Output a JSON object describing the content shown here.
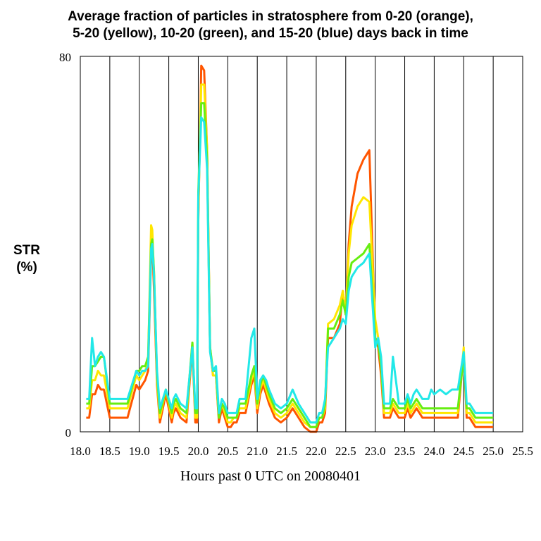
{
  "chart_data": {
    "type": "line",
    "title": [
      "Average fraction of particles in stratosphere from 0-20 (orange),",
      "5-20 (yellow), 10-20 (green), and 15-20 (blue) days back in time"
    ],
    "ylabel": [
      "STR",
      "(%)"
    ],
    "xlabel": "Hours past 0 UTC on 20080401",
    "xlim": [
      18.0,
      25.5
    ],
    "ylim": [
      0,
      80
    ],
    "ytick_labels": [
      "0",
      "80"
    ],
    "xtick_labels": [
      "18.0",
      "18.5",
      "19.0",
      "19.5",
      "20.0",
      "20.5",
      "21.0",
      "21.5",
      "22.0",
      "22.5",
      "23.0",
      "23.5",
      "24.0",
      "24.5",
      "25.0",
      "25.5"
    ],
    "grid": "vertical",
    "legend": "none",
    "series": [
      {
        "color": "#ff5500",
        "x": [
          18.1,
          18.15,
          18.2,
          18.25,
          18.3,
          18.35,
          18.4,
          18.5,
          18.7,
          18.8,
          18.95,
          19.0,
          19.05,
          19.1,
          19.15,
          19.2,
          19.22,
          19.25,
          19.3,
          19.35,
          19.45,
          19.55,
          19.58,
          19.62,
          19.7,
          19.8,
          19.9,
          19.95,
          19.98,
          20.0,
          20.05,
          20.1,
          20.15,
          20.2,
          20.25,
          20.3,
          20.35,
          20.4,
          20.45,
          20.5,
          20.55,
          20.6,
          20.65,
          20.7,
          20.8,
          20.9,
          20.95,
          21.0,
          21.05,
          21.1,
          21.15,
          21.2,
          21.3,
          21.4,
          21.5,
          21.6,
          21.7,
          21.8,
          21.9,
          22.0,
          22.05,
          22.1,
          22.15,
          22.2,
          22.3,
          22.4,
          22.45,
          22.5,
          22.55,
          22.6,
          22.7,
          22.8,
          22.9,
          23.0,
          23.05,
          23.1,
          23.15,
          23.2,
          23.25,
          23.3,
          23.4,
          23.5,
          23.55,
          23.6,
          23.65,
          23.7,
          23.8,
          23.9,
          23.95,
          24.0,
          24.1,
          24.2,
          24.3,
          24.4,
          24.5,
          24.55,
          24.6,
          24.65,
          24.7,
          24.75,
          24.8,
          24.9,
          25.0
        ],
        "y": [
          3,
          3,
          8,
          8,
          10,
          9,
          9,
          3,
          3,
          3,
          10,
          9,
          10,
          11,
          13,
          38,
          40,
          30,
          10,
          2,
          8,
          2,
          4,
          5,
          3,
          2,
          18,
          2,
          2,
          45,
          78,
          77,
          60,
          18,
          12,
          12,
          2,
          5,
          3,
          1,
          1,
          2,
          2,
          4,
          4,
          10,
          12,
          4,
          8,
          10,
          8,
          6,
          3,
          2,
          3,
          5,
          3,
          1,
          0,
          0,
          2,
          2,
          4,
          20,
          20,
          23,
          30,
          25,
          40,
          48,
          55,
          58,
          60,
          20,
          18,
          12,
          3,
          3,
          3,
          5,
          3,
          3,
          5,
          3,
          4,
          5,
          3,
          3,
          3,
          3,
          3,
          3,
          3,
          3,
          17,
          3,
          3,
          2,
          1,
          1,
          1,
          1,
          1
        ]
      },
      {
        "color": "#ffe600",
        "x": [
          18.1,
          18.15,
          18.2,
          18.25,
          18.3,
          18.35,
          18.4,
          18.5,
          18.7,
          18.8,
          18.95,
          19.0,
          19.05,
          19.1,
          19.15,
          19.2,
          19.22,
          19.25,
          19.3,
          19.35,
          19.45,
          19.55,
          19.58,
          19.62,
          19.7,
          19.8,
          19.9,
          19.95,
          19.98,
          20.0,
          20.05,
          20.1,
          20.15,
          20.2,
          20.25,
          20.3,
          20.35,
          20.4,
          20.45,
          20.5,
          20.55,
          20.6,
          20.65,
          20.7,
          20.8,
          20.9,
          20.95,
          21.0,
          21.05,
          21.1,
          21.15,
          21.2,
          21.3,
          21.4,
          21.5,
          21.6,
          21.7,
          21.8,
          21.9,
          22.0,
          22.05,
          22.1,
          22.15,
          22.2,
          22.3,
          22.4,
          22.45,
          22.5,
          22.55,
          22.6,
          22.7,
          22.8,
          22.9,
          23.0,
          23.05,
          23.1,
          23.15,
          23.2,
          23.25,
          23.3,
          23.4,
          23.5,
          23.55,
          23.6,
          23.65,
          23.7,
          23.8,
          23.9,
          23.95,
          24.0,
          24.1,
          24.2,
          24.3,
          24.4,
          24.5,
          24.55,
          24.6,
          24.65,
          24.7,
          24.75,
          24.8,
          24.9,
          25.0
        ],
        "y": [
          5,
          5,
          11,
          11,
          13,
          12,
          12,
          5,
          5,
          5,
          12,
          11,
          12,
          13,
          15,
          44,
          43,
          33,
          11,
          3,
          9,
          3,
          5,
          6,
          4,
          3,
          19,
          3,
          3,
          47,
          74,
          74,
          60,
          18,
          12,
          12,
          3,
          6,
          4,
          2,
          2,
          3,
          3,
          5,
          5,
          11,
          13,
          5,
          9,
          11,
          9,
          7,
          4,
          3,
          4,
          6,
          4,
          2,
          1,
          1,
          3,
          3,
          5,
          23,
          24,
          27,
          30,
          25,
          38,
          44,
          48,
          50,
          49,
          24,
          20,
          14,
          4,
          4,
          4,
          6,
          4,
          4,
          6,
          4,
          5,
          6,
          4,
          4,
          4,
          4,
          4,
          4,
          4,
          4,
          18,
          4,
          4,
          3,
          2,
          2,
          2,
          2,
          2
        ]
      },
      {
        "color": "#66ee11",
        "x": [
          18.1,
          18.15,
          18.2,
          18.25,
          18.3,
          18.35,
          18.4,
          18.5,
          18.7,
          18.8,
          18.95,
          19.0,
          19.05,
          19.1,
          19.15,
          19.2,
          19.22,
          19.25,
          19.3,
          19.35,
          19.45,
          19.55,
          19.58,
          19.62,
          19.7,
          19.8,
          19.9,
          19.95,
          19.98,
          20.0,
          20.05,
          20.1,
          20.15,
          20.2,
          20.25,
          20.3,
          20.35,
          20.4,
          20.45,
          20.5,
          20.55,
          20.6,
          20.65,
          20.7,
          20.8,
          20.9,
          20.95,
          21.0,
          21.05,
          21.1,
          21.15,
          21.2,
          21.3,
          21.4,
          21.5,
          21.6,
          21.7,
          21.8,
          21.9,
          22.0,
          22.05,
          22.1,
          22.15,
          22.2,
          22.3,
          22.4,
          22.45,
          22.5,
          22.55,
          22.6,
          22.7,
          22.8,
          22.9,
          23.0,
          23.05,
          23.1,
          23.15,
          23.2,
          23.25,
          23.3,
          23.4,
          23.5,
          23.55,
          23.6,
          23.65,
          23.7,
          23.8,
          23.9,
          23.95,
          24.0,
          24.1,
          24.2,
          24.3,
          24.4,
          24.5,
          24.55,
          24.6,
          24.65,
          24.7,
          24.75,
          24.8,
          24.9,
          25.0
        ],
        "y": [
          6,
          6,
          14,
          14,
          15,
          16,
          16,
          6,
          6,
          6,
          13,
          13,
          14,
          14,
          16,
          40,
          41,
          34,
          12,
          4,
          9,
          4,
          6,
          7,
          5,
          4,
          19,
          4,
          4,
          51,
          70,
          70,
          58,
          18,
          13,
          13,
          3,
          6,
          5,
          3,
          3,
          3,
          3,
          6,
          6,
          12,
          14,
          6,
          10,
          12,
          10,
          8,
          5,
          4,
          5,
          7,
          5,
          3,
          1,
          1,
          3,
          3,
          6,
          22,
          22,
          25,
          28,
          25,
          33,
          36,
          37,
          38,
          40,
          20,
          19,
          14,
          5,
          5,
          5,
          7,
          5,
          5,
          7,
          5,
          6,
          7,
          5,
          5,
          5,
          5,
          5,
          5,
          5,
          5,
          16,
          5,
          5,
          4,
          3,
          3,
          3,
          3,
          3
        ]
      },
      {
        "color": "#22e8e8",
        "x": [
          18.1,
          18.15,
          18.2,
          18.25,
          18.3,
          18.35,
          18.4,
          18.5,
          18.7,
          18.8,
          18.95,
          19.0,
          19.05,
          19.1,
          19.15,
          19.2,
          19.22,
          19.25,
          19.3,
          19.35,
          19.45,
          19.55,
          19.58,
          19.62,
          19.7,
          19.8,
          19.9,
          19.95,
          19.98,
          20.0,
          20.05,
          20.1,
          20.15,
          20.2,
          20.25,
          20.3,
          20.35,
          20.4,
          20.45,
          20.5,
          20.55,
          20.6,
          20.65,
          20.7,
          20.8,
          20.9,
          20.95,
          21.0,
          21.05,
          21.1,
          21.15,
          21.2,
          21.3,
          21.4,
          21.5,
          21.6,
          21.7,
          21.8,
          21.9,
          22.0,
          22.05,
          22.1,
          22.15,
          22.2,
          22.3,
          22.4,
          22.45,
          22.5,
          22.55,
          22.6,
          22.7,
          22.8,
          22.9,
          23.0,
          23.05,
          23.1,
          23.15,
          23.2,
          23.25,
          23.3,
          23.4,
          23.5,
          23.55,
          23.6,
          23.65,
          23.7,
          23.8,
          23.9,
          23.95,
          24.0,
          24.1,
          24.2,
          24.3,
          24.4,
          24.5,
          24.55,
          24.6,
          24.65,
          24.7,
          24.75,
          24.8,
          24.9,
          25.0
        ],
        "y": [
          7,
          7,
          20,
          14,
          16,
          17,
          16,
          7,
          7,
          7,
          13,
          12,
          13,
          13,
          14,
          39,
          40,
          33,
          13,
          5,
          9,
          5,
          7,
          8,
          6,
          5,
          18,
          5,
          5,
          50,
          67,
          66,
          56,
          17,
          13,
          14,
          4,
          7,
          6,
          4,
          4,
          4,
          4,
          7,
          7,
          20,
          22,
          7,
          11,
          12,
          11,
          9,
          6,
          5,
          6,
          9,
          6,
          4,
          2,
          2,
          4,
          4,
          7,
          18,
          20,
          22,
          24,
          23,
          30,
          33,
          35,
          36,
          38,
          18,
          20,
          16,
          6,
          6,
          6,
          16,
          6,
          6,
          8,
          6,
          8,
          9,
          7,
          7,
          9,
          8,
          9,
          8,
          9,
          9,
          17,
          6,
          6,
          5,
          4,
          4,
          4,
          4,
          4
        ]
      }
    ]
  }
}
